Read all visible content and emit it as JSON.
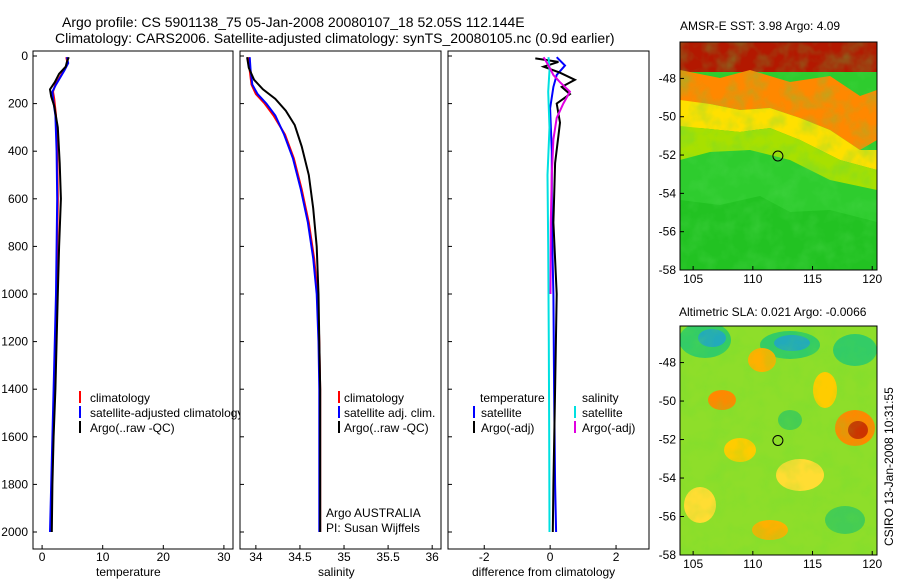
{
  "title": {
    "line1": "Argo profile: CS 5901138_75 05-Jan-2008 20080107_18 52.05S 112.144E",
    "line2": "Climatology: CARS2006. Satellite-adjusted climatology: synTS_20080105.nc (0.9d earlier)"
  },
  "side_label": "CSIRO 13-Jan-2008 10:31:55",
  "colors": {
    "climatology": "#ff0000",
    "satellite": "#0000ff",
    "argo": "#000000",
    "sal_satellite": "#00e0e0",
    "sal_argo": "#e000e0"
  },
  "chart_data": [
    {
      "type": "line",
      "id": "temperature",
      "xlabel": "temperature",
      "xlim": [
        -1.5,
        31.5
      ],
      "xticks": [
        0,
        10,
        20,
        30
      ],
      "ylim": [
        2000,
        0
      ],
      "yticks": [
        0,
        200,
        400,
        600,
        800,
        1000,
        1200,
        1400,
        1600,
        1800,
        2000
      ],
      "series": [
        {
          "name": "climatology",
          "color": "#ff0000",
          "points": [
            [
              4.0,
              5
            ],
            [
              4.2,
              30
            ],
            [
              3.6,
              60
            ],
            [
              2.9,
              90
            ],
            [
              2.2,
              120
            ],
            [
              1.8,
              150
            ],
            [
              2.0,
              180
            ],
            [
              2.3,
              250
            ],
            [
              2.5,
              400
            ],
            [
              2.6,
              600
            ],
            [
              2.5,
              800
            ],
            [
              2.4,
              1000
            ],
            [
              2.2,
              1200
            ],
            [
              2.0,
              1400
            ],
            [
              1.8,
              1600
            ],
            [
              1.6,
              1800
            ],
            [
              1.4,
              2000
            ]
          ]
        },
        {
          "name": "satellite-adjusted climatology",
          "color": "#0000ff",
          "points": [
            [
              4.1,
              5
            ],
            [
              4.3,
              30
            ],
            [
              3.7,
              60
            ],
            [
              3.0,
              90
            ],
            [
              2.3,
              120
            ],
            [
              1.7,
              150
            ],
            [
              1.8,
              180
            ],
            [
              2.2,
              250
            ],
            [
              2.4,
              400
            ],
            [
              2.5,
              600
            ],
            [
              2.4,
              800
            ],
            [
              2.3,
              1000
            ],
            [
              2.1,
              1200
            ],
            [
              1.9,
              1400
            ],
            [
              1.7,
              1600
            ],
            [
              1.5,
              1800
            ],
            [
              1.3,
              2000
            ]
          ]
        },
        {
          "name": "Argo(..raw -QC)",
          "color": "#000000",
          "points": [
            [
              4.4,
              5
            ],
            [
              4.1,
              25
            ],
            [
              3.9,
              45
            ],
            [
              2.8,
              75
            ],
            [
              2.1,
              110
            ],
            [
              1.3,
              140
            ],
            [
              1.5,
              170
            ],
            [
              2.0,
              210
            ],
            [
              2.6,
              300
            ],
            [
              2.9,
              450
            ],
            [
              3.1,
              600
            ],
            [
              2.8,
              800
            ],
            [
              2.6,
              1000
            ],
            [
              2.4,
              1200
            ],
            [
              2.2,
              1400
            ],
            [
              1.9,
              1600
            ],
            [
              1.7,
              1800
            ],
            [
              1.6,
              2000
            ]
          ]
        }
      ],
      "legend": {
        "items": [
          "climatology",
          "satellite-adjusted climatology",
          "Argo(..raw -QC)"
        ]
      }
    },
    {
      "type": "line",
      "id": "salinity",
      "xlabel": "salinity",
      "xlim": [
        33.82,
        36.1
      ],
      "xticks": [
        34,
        34.5,
        35,
        35.5,
        36
      ],
      "ylim": [
        2000,
        0
      ],
      "series": [
        {
          "name": "climatology",
          "color": "#ff0000",
          "points": [
            [
              33.92,
              5
            ],
            [
              33.93,
              60
            ],
            [
              33.95,
              120
            ],
            [
              34.0,
              160
            ],
            [
              34.1,
              200
            ],
            [
              34.2,
              250
            ],
            [
              34.33,
              330
            ],
            [
              34.43,
              430
            ],
            [
              34.52,
              560
            ],
            [
              34.6,
              700
            ],
            [
              34.66,
              850
            ],
            [
              34.7,
              1000
            ],
            [
              34.72,
              1200
            ],
            [
              34.73,
              1400
            ],
            [
              34.73,
              1600
            ],
            [
              34.73,
              1800
            ],
            [
              34.73,
              2000
            ]
          ]
        },
        {
          "name": "satellite adj. clim.",
          "color": "#0000ff",
          "points": [
            [
              33.93,
              5
            ],
            [
              33.94,
              60
            ],
            [
              33.96,
              120
            ],
            [
              34.02,
              160
            ],
            [
              34.12,
              200
            ],
            [
              34.22,
              250
            ],
            [
              34.32,
              330
            ],
            [
              34.42,
              430
            ],
            [
              34.51,
              560
            ],
            [
              34.59,
              700
            ],
            [
              34.65,
              850
            ],
            [
              34.69,
              1000
            ],
            [
              34.71,
              1200
            ],
            [
              34.72,
              1400
            ],
            [
              34.72,
              1600
            ],
            [
              34.72,
              1800
            ],
            [
              34.72,
              2000
            ]
          ]
        },
        {
          "name": "Argo(..raw -QC)",
          "color": "#000000",
          "points": [
            [
              33.9,
              5
            ],
            [
              33.92,
              50
            ],
            [
              33.98,
              100
            ],
            [
              34.08,
              140
            ],
            [
              34.22,
              180
            ],
            [
              34.34,
              230
            ],
            [
              34.44,
              290
            ],
            [
              34.52,
              380
            ],
            [
              34.6,
              500
            ],
            [
              34.65,
              640
            ],
            [
              34.69,
              800
            ],
            [
              34.71,
              1000
            ],
            [
              34.72,
              1200
            ],
            [
              34.73,
              1400
            ],
            [
              34.73,
              1600
            ],
            [
              34.73,
              1800
            ],
            [
              34.73,
              2000
            ]
          ]
        }
      ],
      "legend": {
        "items": [
          "climatology",
          "satellite adj. clim.",
          "Argo(..raw -QC)"
        ]
      },
      "annotation": [
        "Argo AUSTRALIA",
        "PI: Susan Wijffels"
      ]
    },
    {
      "type": "line",
      "id": "difference",
      "xlabel": "difference from climatology",
      "xlim": [
        -3.1,
        3.0
      ],
      "xticks": [
        -2,
        0,
        2
      ],
      "ylim": [
        2000,
        0
      ],
      "series": [
        {
          "name": "temperature satellite",
          "color": "#0000ff",
          "points": [
            [
              0.2,
              5
            ],
            [
              0.45,
              40
            ],
            [
              0.2,
              80
            ],
            [
              0.1,
              130
            ],
            [
              0.0,
              220
            ],
            [
              0.05,
              400
            ],
            [
              0.05,
              700
            ],
            [
              0.1,
              1000
            ],
            [
              0.12,
              1400
            ],
            [
              0.15,
              1800
            ],
            [
              0.18,
              2000
            ]
          ]
        },
        {
          "name": "temperature Argo(-adj)",
          "color": "#000000",
          "points": [
            [
              -0.45,
              10
            ],
            [
              0.25,
              25
            ],
            [
              -0.2,
              45
            ],
            [
              0.3,
              70
            ],
            [
              0.75,
              100
            ],
            [
              0.35,
              130
            ],
            [
              0.6,
              160
            ],
            [
              0.2,
              200
            ],
            [
              0.3,
              280
            ],
            [
              0.15,
              450
            ],
            [
              0.1,
              700
            ],
            [
              0.2,
              1000
            ],
            [
              0.15,
              1400
            ],
            [
              0.1,
              1800
            ],
            [
              0.08,
              2000
            ]
          ]
        },
        {
          "name": "salinity satellite",
          "color": "#00e0e0",
          "points": [
            [
              -0.05,
              5
            ],
            [
              -0.02,
              60
            ],
            [
              -0.06,
              150
            ],
            [
              -0.02,
              300
            ],
            [
              -0.08,
              500
            ],
            [
              -0.06,
              800
            ],
            [
              -0.04,
              1200
            ],
            [
              -0.03,
              1600
            ],
            [
              -0.02,
              2000
            ]
          ]
        },
        {
          "name": "salinity Argo(-adj)",
          "color": "#e000e0",
          "points": [
            [
              -0.2,
              5
            ],
            [
              -0.05,
              40
            ],
            [
              0.1,
              80
            ],
            [
              0.3,
              110
            ],
            [
              0.6,
              150
            ],
            [
              0.4,
              200
            ],
            [
              0.2,
              260
            ],
            [
              0.1,
              350
            ],
            [
              0.05,
              500
            ],
            [
              0.02,
              700
            ],
            [
              0.01,
              1000
            ]
          ]
        }
      ],
      "legend": {
        "col1_header": "temperature",
        "col1_items": [
          "satellite",
          "Argo(-adj)"
        ],
        "col2_header": "salinity",
        "col2_items": [
          "satellite",
          "Argo(-adj)"
        ]
      }
    },
    {
      "type": "heatmap",
      "id": "sst_map",
      "title": "AMSR-E SST: 3.98 Argo: 4.09",
      "xlim": [
        103.9,
        120.4
      ],
      "ylim": [
        -58,
        -46.1
      ],
      "xticks": [
        105,
        110,
        115,
        120
      ],
      "yticks": [
        -48,
        -50,
        -52,
        -54,
        -56,
        -58
      ],
      "marker": [
        112.1,
        -52.05
      ]
    },
    {
      "type": "heatmap",
      "id": "sla_map",
      "title": "Altimetric SLA: 0.021 Argo: -0.0066",
      "xlim": [
        103.9,
        120.4
      ],
      "ylim": [
        -58,
        -46.1
      ],
      "xticks": [
        105,
        110,
        115,
        120
      ],
      "yticks": [
        -48,
        -50,
        -52,
        -54,
        -56,
        -58
      ],
      "marker": [
        112.1,
        -52.05
      ]
    }
  ]
}
